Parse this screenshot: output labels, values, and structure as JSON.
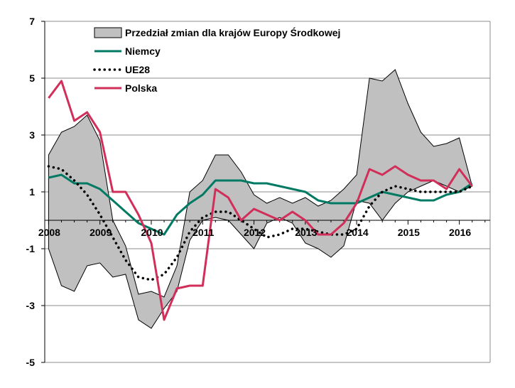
{
  "chart_data": {
    "type": "line",
    "title": "",
    "xlabel": "",
    "ylabel": "",
    "ylim": [
      -5,
      7
    ],
    "yticks": [
      7,
      5,
      3,
      1,
      -1,
      -3,
      -5
    ],
    "xlim": [
      2008,
      2016.75
    ],
    "x_tick_labels": [
      "2008",
      "2009",
      "2010",
      "2011",
      "2012",
      "2013",
      "2014",
      "2015",
      "2016"
    ],
    "x_tick_values": [
      2008,
      2009,
      2010,
      2011,
      2012,
      2013,
      2014,
      2015,
      2016
    ],
    "grid": true,
    "legend_position": "top-left",
    "x": [
      2008.0,
      2008.25,
      2008.5,
      2008.75,
      2009.0,
      2009.25,
      2009.5,
      2009.75,
      2010.0,
      2010.25,
      2010.5,
      2010.75,
      2011.0,
      2011.25,
      2011.5,
      2011.75,
      2012.0,
      2012.25,
      2012.5,
      2012.75,
      2013.0,
      2013.25,
      2013.5,
      2013.75,
      2014.0,
      2014.25,
      2014.5,
      2014.75,
      2015.0,
      2015.25,
      2015.5,
      2015.75,
      2016.0,
      2016.25
    ],
    "band": {
      "name": "Przedział zmian dla krajów Europy Środkowej",
      "color": "#c0c0c0",
      "upper": [
        2.3,
        3.1,
        3.3,
        3.7,
        2.8,
        0.0,
        -0.9,
        -2.6,
        -2.5,
        -2.7,
        -1.6,
        1.0,
        1.4,
        2.3,
        2.3,
        1.7,
        0.9,
        0.6,
        0.8,
        0.6,
        0.8,
        0.5,
        0.7,
        1.1,
        1.6,
        5.0,
        4.9,
        5.3,
        4.1,
        3.1,
        2.6,
        2.7,
        2.9,
        1.2
      ],
      "lower": [
        -1.0,
        -2.3,
        -2.5,
        -1.6,
        -1.5,
        -2.0,
        -1.9,
        -3.5,
        -3.8,
        -3.1,
        -2.5,
        -0.7,
        0.0,
        0.1,
        0.0,
        -0.5,
        -1.0,
        -0.1,
        0.1,
        -0.1,
        -0.8,
        -1.0,
        -1.3,
        -0.9,
        0.7,
        0.6,
        0.0,
        0.6,
        1.0,
        1.2,
        1.4,
        1.2,
        1.0,
        1.2
      ]
    },
    "series": [
      {
        "name": "Niemcy",
        "color": "#007a63",
        "style": "solid",
        "values": [
          1.5,
          1.6,
          1.3,
          1.3,
          1.1,
          0.7,
          0.3,
          -0.1,
          -0.3,
          -0.5,
          0.2,
          0.6,
          0.9,
          1.4,
          1.4,
          1.4,
          1.3,
          1.3,
          1.2,
          1.1,
          1.0,
          0.7,
          0.6,
          0.6,
          0.6,
          0.8,
          1.0,
          0.9,
          0.8,
          0.7,
          0.7,
          0.9,
          1.0,
          1.3
        ]
      },
      {
        "name": "UE28",
        "color": "#000000",
        "style": "dotted",
        "values": [
          1.9,
          1.8,
          1.4,
          0.9,
          0.2,
          -0.6,
          -1.4,
          -2.0,
          -2.1,
          -1.9,
          -1.3,
          -0.4,
          0.1,
          0.3,
          0.3,
          0.0,
          -0.3,
          -0.6,
          -0.5,
          -0.3,
          -0.3,
          -0.4,
          -0.5,
          -0.5,
          -0.3,
          0.5,
          1.0,
          1.2,
          1.1,
          1.0,
          1.0,
          1.0,
          1.0,
          1.2
        ]
      },
      {
        "name": "Polska",
        "color": "#d12f5a",
        "style": "solid",
        "values": [
          4.3,
          4.9,
          3.5,
          3.8,
          3.1,
          1.0,
          1.0,
          0.2,
          -0.8,
          -3.5,
          -2.4,
          -2.3,
          -2.3,
          1.1,
          0.8,
          0.0,
          0.4,
          0.2,
          0.0,
          0.3,
          0.0,
          -0.5,
          -0.5,
          -0.1,
          0.6,
          1.8,
          1.6,
          1.9,
          1.6,
          1.4,
          1.4,
          1.1,
          1.8,
          1.2
        ]
      }
    ]
  }
}
